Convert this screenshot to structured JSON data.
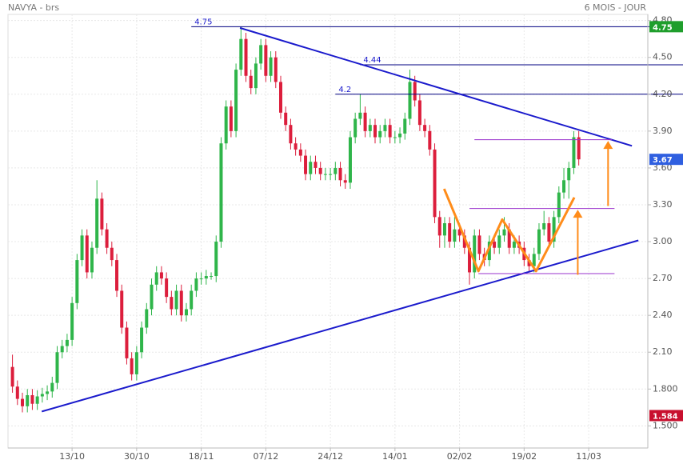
{
  "chart_data": {
    "type": "candlestick",
    "title": "NAVYA - brs",
    "subtitle": "6 MOIS - JOUR",
    "categories": [
      null,
      null,
      null,
      null,
      null,
      null,
      null,
      null,
      null,
      null,
      null,
      null,
      "13/10",
      null,
      null,
      null,
      null,
      null,
      null,
      null,
      null,
      null,
      null,
      null,
      null,
      "30/10",
      null,
      null,
      null,
      null,
      null,
      null,
      null,
      null,
      null,
      null,
      null,
      null,
      "18/11",
      null,
      null,
      null,
      null,
      null,
      null,
      null,
      null,
      null,
      null,
      null,
      null,
      "07/12",
      null,
      null,
      null,
      null,
      null,
      null,
      null,
      null,
      null,
      null,
      null,
      null,
      "24/12",
      null,
      null,
      null,
      null,
      null,
      null,
      null,
      null,
      null,
      null,
      null,
      null,
      "14/01",
      null,
      null,
      null,
      null,
      null,
      null,
      null,
      null,
      null,
      null,
      null,
      null,
      "02/02",
      null,
      null,
      null,
      null,
      null,
      null,
      null,
      null,
      null,
      null,
      null,
      null,
      "19/02",
      null,
      null,
      null,
      null,
      null,
      null,
      null,
      null,
      null,
      null,
      null,
      null,
      "11/03"
    ],
    "open": [
      1.98,
      1.82,
      1.72,
      1.66,
      1.75,
      1.68,
      1.74,
      1.76,
      1.78,
      1.85,
      2.1,
      2.15,
      2.2,
      2.5,
      2.85,
      3.05,
      2.75,
      2.95,
      3.35,
      3.1,
      2.95,
      2.85,
      2.6,
      2.3,
      2.05,
      1.92,
      2.1,
      2.3,
      2.45,
      2.65,
      2.75,
      2.7,
      2.55,
      2.45,
      2.6,
      2.4,
      2.45,
      2.6,
      2.7,
      2.7,
      2.72,
      2.72,
      3.0,
      3.8,
      4.1,
      3.9,
      4.4,
      4.65,
      4.35,
      4.25,
      4.45,
      4.6,
      4.35,
      4.5,
      4.3,
      4.05,
      3.95,
      3.8,
      3.75,
      3.7,
      3.55,
      3.65,
      3.6,
      3.55,
      3.55,
      3.55,
      3.6,
      3.5,
      3.48,
      3.85,
      4.0,
      4.05,
      3.9,
      3.95,
      3.85,
      3.9,
      3.95,
      3.85,
      3.85,
      3.88,
      4.0,
      4.3,
      4.15,
      3.95,
      3.9,
      3.75,
      3.2,
      3.05,
      3.15,
      3.0,
      3.1,
      3.05,
      2.95,
      2.75,
      3.05,
      2.9,
      2.85,
      3.0,
      2.95,
      3.05,
      3.1,
      2.95,
      3.0,
      2.95,
      2.85,
      2.8,
      2.9,
      3.1,
      3.15,
      3.0,
      3.2,
      3.4,
      3.5,
      3.6,
      3.85,
      null,
      null
    ],
    "high": [
      2.08,
      1.87,
      1.77,
      1.8,
      1.8,
      1.79,
      1.81,
      1.83,
      1.9,
      2.15,
      2.2,
      2.25,
      2.55,
      2.9,
      3.1,
      3.1,
      3.0,
      3.5,
      3.4,
      3.15,
      3.0,
      2.9,
      2.65,
      2.35,
      2.1,
      2.15,
      2.35,
      2.5,
      2.7,
      2.8,
      2.8,
      2.75,
      2.6,
      2.65,
      2.65,
      2.5,
      2.65,
      2.75,
      2.75,
      2.77,
      2.75,
      3.05,
      3.85,
      4.15,
      4.15,
      4.45,
      4.75,
      4.7,
      4.4,
      4.5,
      4.65,
      4.65,
      4.55,
      4.55,
      4.35,
      4.1,
      4.0,
      3.85,
      3.8,
      3.75,
      3.7,
      3.7,
      3.65,
      3.6,
      3.6,
      3.65,
      3.65,
      3.55,
      3.9,
      4.05,
      4.2,
      4.1,
      4.0,
      4.0,
      3.95,
      4.0,
      4.0,
      3.9,
      3.93,
      4.05,
      4.4,
      4.35,
      4.2,
      4.0,
      3.95,
      3.8,
      3.25,
      3.2,
      3.2,
      3.2,
      3.15,
      3.1,
      3.0,
      3.1,
      3.1,
      2.95,
      3.05,
      3.05,
      3.1,
      3.2,
      3.15,
      3.05,
      3.05,
      3.0,
      2.9,
      2.95,
      3.15,
      3.25,
      3.2,
      3.25,
      3.45,
      3.6,
      3.65,
      3.9,
      3.9,
      null,
      null
    ],
    "low": [
      1.77,
      1.67,
      1.61,
      1.61,
      1.63,
      1.63,
      1.69,
      1.71,
      1.73,
      1.8,
      2.05,
      2.1,
      2.15,
      2.45,
      2.8,
      2.7,
      2.7,
      2.9,
      3.05,
      2.9,
      2.8,
      2.55,
      2.25,
      2.0,
      1.87,
      1.87,
      2.05,
      2.25,
      2.4,
      2.6,
      2.65,
      2.5,
      2.4,
      2.4,
      2.35,
      2.35,
      2.4,
      2.55,
      2.65,
      2.65,
      2.69,
      2.67,
      2.95,
      3.75,
      3.85,
      3.85,
      4.35,
      4.3,
      4.2,
      4.2,
      4.4,
      4.3,
      4.3,
      4.25,
      4.0,
      3.9,
      3.75,
      3.7,
      3.65,
      3.5,
      3.5,
      3.55,
      3.5,
      3.5,
      3.5,
      3.5,
      3.45,
      3.43,
      3.43,
      3.8,
      3.95,
      3.85,
      3.85,
      3.8,
      3.8,
      3.85,
      3.8,
      3.8,
      3.8,
      3.83,
      3.95,
      4.1,
      3.9,
      3.85,
      3.7,
      3.15,
      2.95,
      2.95,
      2.95,
      2.95,
      3.0,
      2.9,
      2.65,
      2.7,
      2.85,
      2.8,
      2.8,
      2.9,
      2.9,
      3.0,
      2.9,
      2.9,
      2.9,
      2.8,
      2.75,
      2.75,
      2.85,
      3.05,
      2.95,
      2.95,
      3.15,
      3.35,
      3.35,
      3.55,
      3.62,
      null,
      null
    ],
    "close": [
      1.82,
      1.72,
      1.66,
      1.75,
      1.68,
      1.74,
      1.76,
      1.78,
      1.85,
      2.1,
      2.15,
      2.2,
      2.5,
      2.85,
      3.05,
      2.75,
      2.95,
      3.35,
      3.1,
      2.95,
      2.85,
      2.6,
      2.3,
      2.05,
      1.92,
      2.1,
      2.3,
      2.45,
      2.65,
      2.75,
      2.7,
      2.55,
      2.45,
      2.6,
      2.4,
      2.45,
      2.6,
      2.7,
      2.7,
      2.72,
      2.72,
      3.0,
      3.8,
      4.1,
      3.9,
      4.4,
      4.65,
      4.35,
      4.25,
      4.45,
      4.6,
      4.35,
      4.5,
      4.3,
      4.05,
      3.95,
      3.8,
      3.75,
      3.7,
      3.55,
      3.65,
      3.6,
      3.55,
      3.55,
      3.55,
      3.6,
      3.5,
      3.48,
      3.85,
      4.0,
      4.05,
      3.9,
      3.95,
      3.85,
      3.9,
      3.95,
      3.85,
      3.85,
      3.88,
      4.0,
      4.3,
      4.15,
      3.95,
      3.9,
      3.75,
      3.2,
      3.05,
      3.15,
      3.0,
      3.1,
      3.05,
      2.95,
      2.75,
      3.05,
      2.9,
      2.85,
      3.0,
      2.95,
      3.05,
      3.1,
      2.95,
      3.0,
      2.95,
      2.85,
      2.8,
      2.9,
      3.1,
      3.15,
      3.0,
      3.2,
      3.4,
      3.5,
      3.6,
      3.85,
      3.67,
      null,
      null
    ],
    "up_color": "#2fb54a",
    "down_color": "#dc1e3c",
    "xlim": [
      -0.9,
      127.9
    ],
    "ylim": [
      1.32,
      4.85
    ],
    "yticks": [
      {
        "value": 1.5,
        "label": "1.500"
      },
      {
        "value": 1.8,
        "label": "1.800"
      },
      {
        "value": 2.1,
        "label": "2.10"
      },
      {
        "value": 2.4,
        "label": "2.40"
      },
      {
        "value": 2.7,
        "label": "2.70"
      },
      {
        "value": 3.0,
        "label": "3.00"
      },
      {
        "value": 3.3,
        "label": "3.30"
      },
      {
        "value": 3.6,
        "label": "3.60"
      },
      {
        "value": 3.9,
        "label": "3.90"
      },
      {
        "value": 4.2,
        "label": "4.20"
      },
      {
        "value": 4.5,
        "label": "4.50"
      },
      {
        "value": 4.8,
        "label": "4.80"
      }
    ],
    "grid": true,
    "price_tags": [
      {
        "value": 4.75,
        "color": "#1f9e2c"
      },
      {
        "value": 3.67,
        "color": "#2f5fe0"
      },
      {
        "value": 1.584,
        "color": "#c8102e"
      }
    ],
    "levels": [
      {
        "value": 4.75,
        "from": 36,
        "color": "#000080"
      },
      {
        "value": 4.44,
        "from": 70,
        "color": "#000080"
      },
      {
        "value": 4.2,
        "from": 65,
        "color": "#000080"
      }
    ],
    "lines": [
      {
        "x": [
          45.8,
          124.7
        ],
        "y": [
          4.74,
          3.78
        ],
        "color": "#1a1acc",
        "width": 2
      },
      {
        "x": [
          5.9,
          126
        ],
        "y": [
          1.617,
          3.01
        ],
        "color": "#1a1acc",
        "width": 2
      },
      {
        "x": [
          93,
          120.7
        ],
        "y": [
          3.83,
          3.83
        ],
        "color": "#9933cc",
        "width": 1
      },
      {
        "x": [
          92,
          121.2
        ],
        "y": [
          3.27,
          3.27
        ],
        "color": "#9933cc",
        "width": 1
      },
      {
        "x": [
          93.8,
          121.2
        ],
        "y": [
          2.74,
          2.74
        ],
        "color": "#9933cc",
        "width": 1
      },
      {
        "x": [
          86.9,
          93.8,
          98.6,
          105.4,
          113.1
        ],
        "y": [
          3.43,
          2.76,
          3.18,
          2.76,
          3.36
        ],
        "color": "#ff8c1a",
        "width": 3
      }
    ],
    "arrows": [
      {
        "x": [
          119.9,
          119.9
        ],
        "y": [
          3.29,
          3.82
        ],
        "color": "#ff8c1a"
      },
      {
        "x": [
          113.8,
          113.8
        ],
        "y": [
          2.73,
          3.26
        ],
        "color": "#ff8c1a"
      }
    ]
  }
}
